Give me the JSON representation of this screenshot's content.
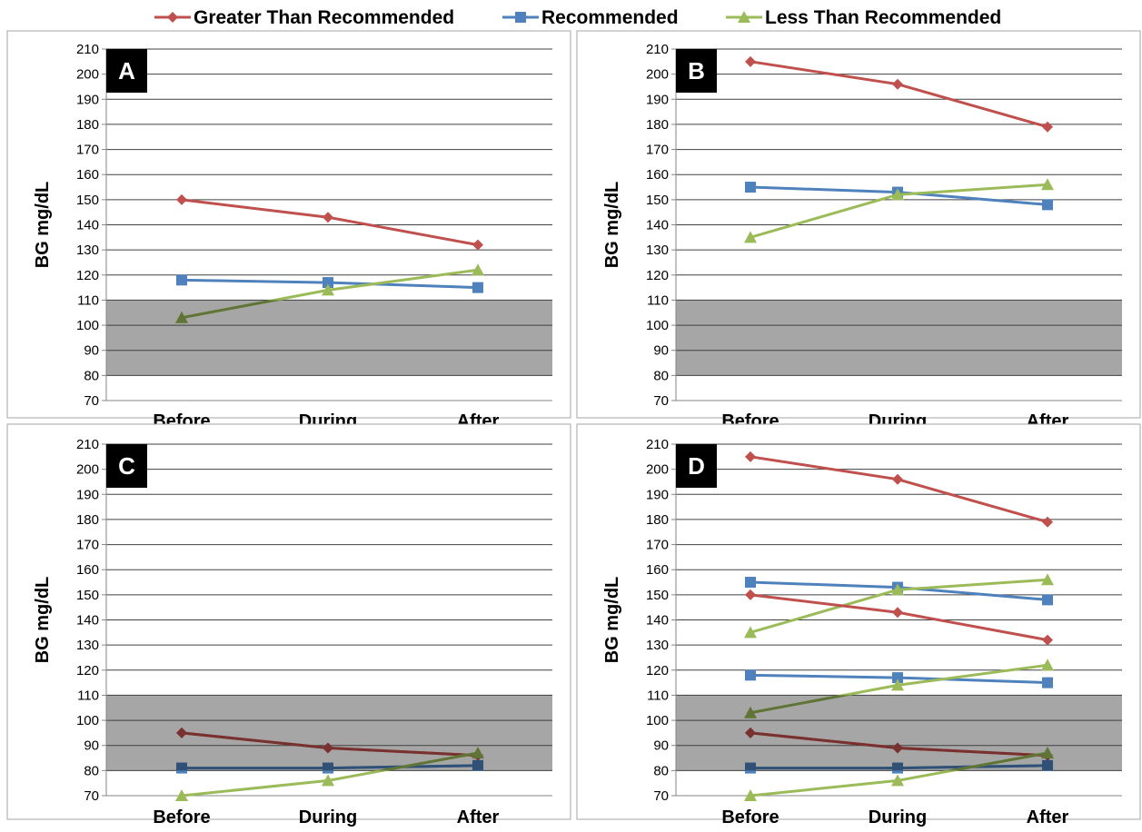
{
  "legend": [
    {
      "label": "Greater Than Recommended",
      "color": "#c0504d",
      "marker": "diamond"
    },
    {
      "label": "Recommended",
      "color": "#4f81bd",
      "marker": "square"
    },
    {
      "label": "Less Than Recommended",
      "color": "#9bbb59",
      "marker": "triangle"
    }
  ],
  "chart_data": [
    {
      "type": "line",
      "panel_label": "A",
      "ylabel": "BG mg/dL",
      "categories": [
        "Before",
        "During",
        "After"
      ],
      "ylim": [
        70,
        210
      ],
      "ytick_step": 10,
      "target_band": [
        80,
        110
      ],
      "grid": true,
      "series": [
        {
          "name": "Greater Than Recommended",
          "values": [
            150,
            143,
            132
          ]
        },
        {
          "name": "Recommended",
          "values": [
            118,
            117,
            115
          ]
        },
        {
          "name": "Less Than Recommended",
          "values": [
            103,
            114,
            122
          ]
        }
      ]
    },
    {
      "type": "line",
      "panel_label": "B",
      "ylabel": "BG mg/dL",
      "categories": [
        "Before",
        "During",
        "After"
      ],
      "ylim": [
        70,
        210
      ],
      "ytick_step": 10,
      "target_band": [
        80,
        110
      ],
      "grid": true,
      "series": [
        {
          "name": "Greater Than Recommended",
          "values": [
            205,
            196,
            179
          ]
        },
        {
          "name": "Recommended",
          "values": [
            155,
            153,
            148
          ]
        },
        {
          "name": "Less Than Recommended",
          "values": [
            135,
            152,
            156
          ]
        }
      ]
    },
    {
      "type": "line",
      "panel_label": "C",
      "ylabel": "BG mg/dL",
      "categories": [
        "Before",
        "During",
        "After"
      ],
      "ylim": [
        70,
        210
      ],
      "ytick_step": 10,
      "target_band": [
        80,
        110
      ],
      "grid": true,
      "series": [
        {
          "name": "Greater Than Recommended",
          "values": [
            95,
            89,
            86
          ]
        },
        {
          "name": "Recommended",
          "values": [
            81,
            81,
            82
          ]
        },
        {
          "name": "Less Than Recommended",
          "values": [
            70,
            76,
            87
          ]
        }
      ]
    },
    {
      "type": "line",
      "panel_label": "D",
      "ylabel": "BG mg/dL",
      "categories": [
        "Before",
        "During",
        "After"
      ],
      "ylim": [
        70,
        210
      ],
      "ytick_step": 10,
      "target_band": [
        80,
        110
      ],
      "grid": true,
      "series": [
        {
          "name": "Greater Than Recommended",
          "values": [
            205,
            196,
            179
          ]
        },
        {
          "name": "Recommended",
          "values": [
            155,
            153,
            148
          ]
        },
        {
          "name": "Less Than Recommended",
          "values": [
            135,
            152,
            156
          ]
        },
        {
          "name": "Greater Than Recommended",
          "values": [
            150,
            143,
            132
          ]
        },
        {
          "name": "Recommended",
          "values": [
            118,
            117,
            115
          ]
        },
        {
          "name": "Less Than Recommended",
          "values": [
            103,
            114,
            122
          ]
        },
        {
          "name": "Greater Than Recommended",
          "values": [
            95,
            89,
            86
          ]
        },
        {
          "name": "Recommended",
          "values": [
            81,
            81,
            82
          ]
        },
        {
          "name": "Less Than Recommended",
          "values": [
            70,
            76,
            87
          ]
        }
      ]
    }
  ]
}
